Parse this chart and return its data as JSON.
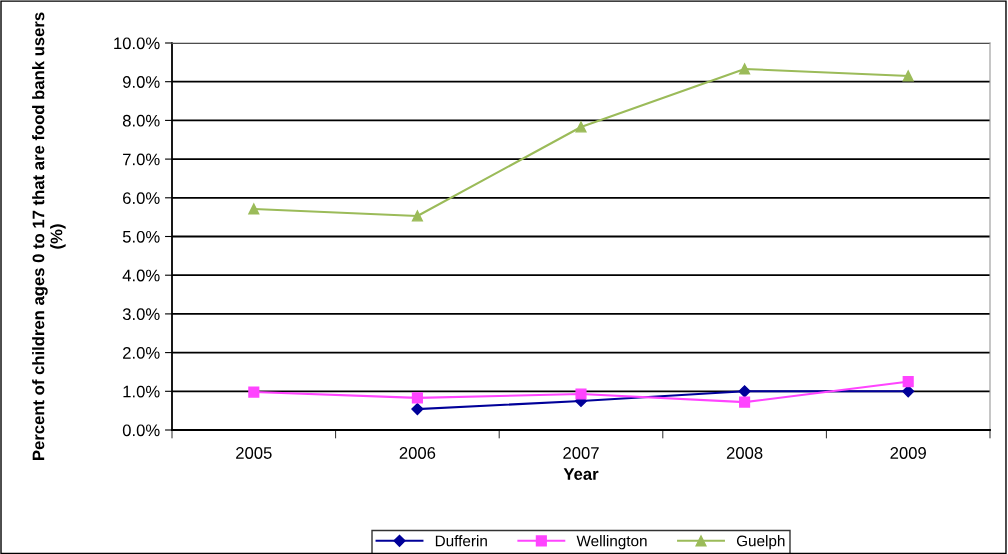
{
  "chart_data": {
    "type": "line",
    "xlabel": "Year",
    "ylabel": "Percent of children ages 0 to 17 that are food bank users (%)",
    "categories": [
      "2005",
      "2006",
      "2007",
      "2008",
      "2009"
    ],
    "series": [
      {
        "name": "Dufferin",
        "color": "#000099",
        "marker": "diamond",
        "values": [
          null,
          0.54,
          0.75,
          1.0,
          1.0
        ]
      },
      {
        "name": "Wellington",
        "color": "#ff44ff",
        "marker": "square",
        "values": [
          0.98,
          0.83,
          0.93,
          0.72,
          1.25
        ]
      },
      {
        "name": "Guelph",
        "color": "#9bbb59",
        "marker": "triangle",
        "values": [
          5.71,
          5.53,
          7.83,
          9.33,
          9.15
        ]
      }
    ],
    "ylim": [
      0,
      10
    ],
    "yticks": [
      {
        "value": 0,
        "label": "0.0%"
      },
      {
        "value": 1,
        "label": "1.0%"
      },
      {
        "value": 2,
        "label": "2.0%"
      },
      {
        "value": 3,
        "label": "3.0%"
      },
      {
        "value": 4,
        "label": "4.0%"
      },
      {
        "value": 5,
        "label": "5.0%"
      },
      {
        "value": 6,
        "label": "6.0%"
      },
      {
        "value": 7,
        "label": "7.0%"
      },
      {
        "value": 8,
        "label": "8.0%"
      },
      {
        "value": 9,
        "label": "9.0%"
      },
      {
        "value": 10,
        "label": "10.0%"
      }
    ],
    "grid": "y",
    "legend": "bottom"
  }
}
